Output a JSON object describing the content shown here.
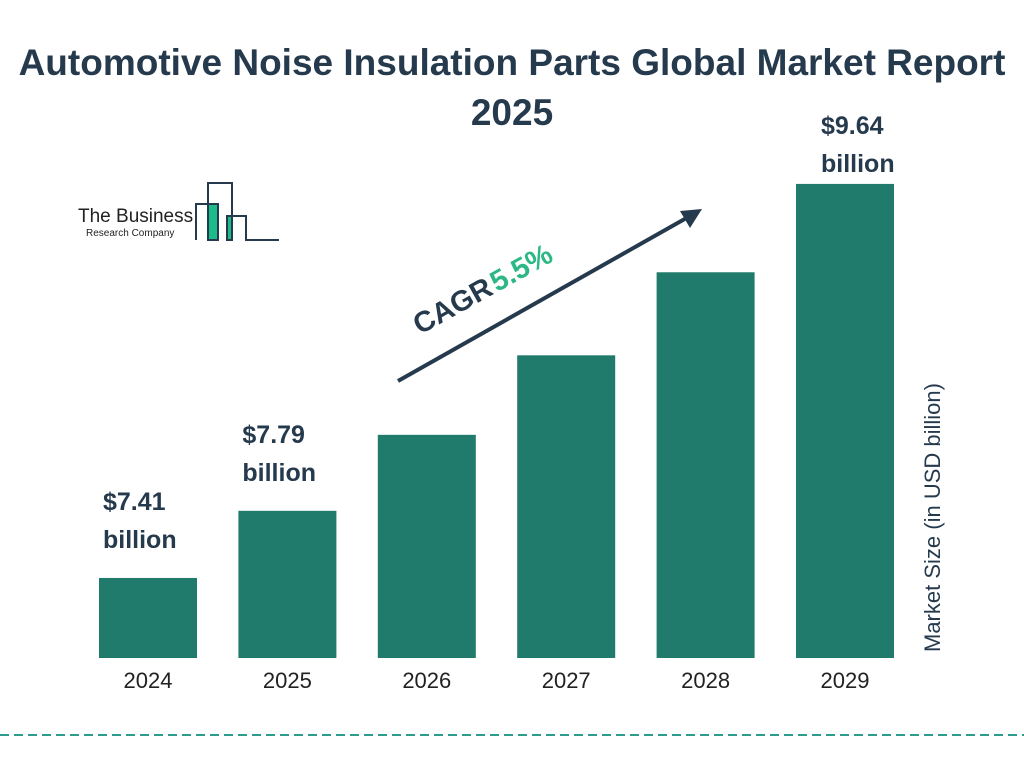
{
  "title": "Automotive Noise Insulation Parts Global Market Report 2025",
  "logo": {
    "line1": "The Business",
    "line2": "Research Company"
  },
  "colors": {
    "bar": "#217b6c",
    "title": "#263a4d",
    "cagr_value": "#2bb884",
    "logo_accent": "#1dbb8a",
    "divider": "#2a9d8f"
  },
  "cagr": {
    "label": "CAGR",
    "value": "5.5%"
  },
  "chart_data": {
    "type": "bar",
    "title": "Automotive Noise Insulation Parts Global Market Report 2025",
    "ylabel": "Market Size (in USD billion)",
    "xlabel": "",
    "categories": [
      "2024",
      "2025",
      "2026",
      "2027",
      "2028",
      "2029"
    ],
    "values": [
      7.41,
      7.79,
      8.22,
      8.67,
      9.14,
      9.64
    ],
    "data_labels": [
      {
        "index": 0,
        "line1": "$7.41",
        "line2": "billion"
      },
      {
        "index": 1,
        "line1": "$7.79",
        "line2": "billion"
      },
      {
        "index": 5,
        "line1": "$9.64",
        "line2": "billion"
      }
    ],
    "grid": false,
    "legend": "none"
  }
}
